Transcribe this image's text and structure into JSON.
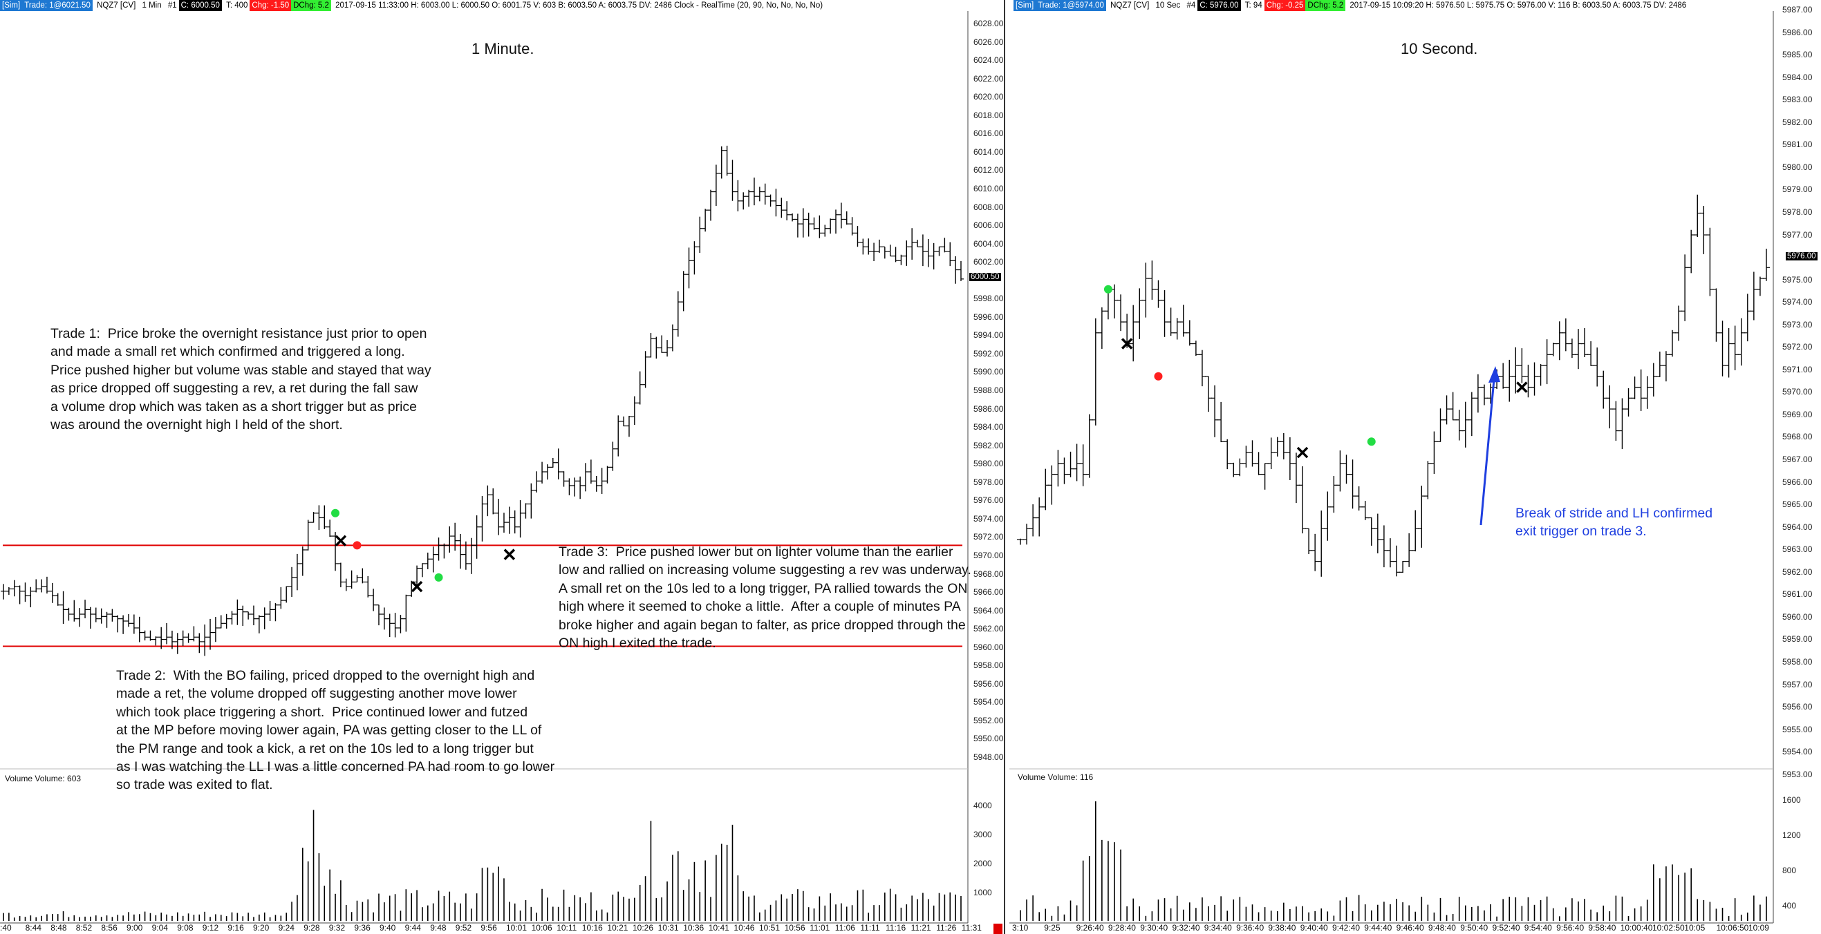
{
  "left": {
    "status": {
      "sim": "[Sim]",
      "trade": "Trade: 1@6021.50",
      "symbol": "NQZ7 [CV]",
      "period": "1 Min",
      "num": "#1",
      "close": "C: 6000.50",
      "ticks": "T: 400",
      "chg": "Chg: -1.50",
      "dchg": "DChg: 5.2",
      "info": "2017-09-15 11:33:00 H: 6003.00 L: 6000.50 O: 6001.75 V: 603 B: 6003.50 A: 6003.75 DV: 2486 Clock - RealTime   (20, 90, No, No, No, No)"
    },
    "title": "1 Minute.",
    "price_tag": "6000.50",
    "price_labels": [
      "6028.00",
      "6026.00",
      "6024.00",
      "6022.00",
      "6020.00",
      "6018.00",
      "6016.00",
      "6014.00",
      "6012.00",
      "6010.00",
      "6008.00",
      "6006.00",
      "6004.00",
      "6002.00",
      "",
      "5998.00",
      "5996.00",
      "5994.00",
      "5992.00",
      "5990.00",
      "5988.00",
      "5986.00",
      "5984.00",
      "5982.00",
      "5980.00",
      "5978.00",
      "5976.00",
      "5974.00",
      "5972.00",
      "5970.00",
      "5968.00",
      "5966.00",
      "5964.00",
      "5962.00",
      "5960.00",
      "5958.00",
      "5956.00",
      "5954.00",
      "5952.00",
      "5950.00",
      "5948.00"
    ],
    "volume_labels": [
      "4000",
      "3000",
      "2000",
      "1000"
    ],
    "volume_title": "Volume  Volume: 603",
    "time_labels": [
      ":40",
      "8:44",
      "8:48",
      "8:52",
      "8:56",
      "9:00",
      "9:04",
      "9:08",
      "9:12",
      "9:16",
      "9:20",
      "9:24",
      "9:28",
      "9:32",
      "9:36",
      "9:40",
      "9:44",
      "9:48",
      "9:52",
      "9:56",
      "10:01",
      "10:06",
      "10:11",
      "10:16",
      "10:21",
      "10:26",
      "10:31",
      "10:36",
      "10:41",
      "10:46",
      "10:51",
      "10:56",
      "11:01",
      "11:06",
      "11:11",
      "11:16",
      "11:21",
      "11:26",
      "11:31"
    ],
    "trade1": "Trade 1:  Price broke the overnight resistance just prior to open\nand made a small ret which confirmed and triggered a long.\nPrice pushed higher but volume was stable and stayed that way\nas price dropped off suggesting a rev, a ret during the fall saw\na volume drop which was taken as a short trigger but as price\nwas around the overnight high I held of the short.",
    "trade2": "Trade 2:  With the BO failing, priced dropped to the overnight high and\nmade a ret, the volume dropped off suggesting another move lower\nwhich took place triggering a short.  Price continued lower and futzed\nat the MP before moving lower again, PA was getting closer to the LL of\nthe PM range and took a kick, a ret on the 10s led to a long trigger but\nas I was watching the LL I was a little concerned PA had room to go lower\nso trade was exited to flat.",
    "trade3": "Trade 3:  Price pushed lower but on lighter volume than the earlier\nlow and rallied on increasing volume suggesting a rev was underway.\nA small ret on the 10s led to a long trigger, PA rallied towards the ON\nhigh where it seemed to choke a little.  After a couple of minutes PA\nbroke higher and again began to falter, as price dropped through the\nON high I exited the trade."
  },
  "right": {
    "status": {
      "sim": "[Sim]",
      "trade": "Trade: 1@5974.00",
      "symbol": "NQZ7 [CV]",
      "period": "10 Sec",
      "num": "#4",
      "close": "C: 5976.00",
      "ticks": "T: 94",
      "chg": "Chg: -0.25",
      "dchg": "DChg: 5.2",
      "info": "2017-09-15 10:09:20 H: 5976.50 L: 5975.75 O: 5976.00 V: 116 B: 6003.50 A: 6003.75 DV: 2486"
    },
    "title": "10 Second.",
    "price_tag": "5976.00",
    "price_labels": [
      "5987.00",
      "5986.00",
      "5985.00",
      "5984.00",
      "5983.00",
      "5982.00",
      "5981.00",
      "5980.00",
      "5979.00",
      "5978.00",
      "5977.00",
      "",
      "5975.00",
      "5974.00",
      "5973.00",
      "5972.00",
      "5971.00",
      "5970.00",
      "5969.00",
      "5968.00",
      "5967.00",
      "5966.00",
      "5965.00",
      "5964.00",
      "5963.00",
      "5962.00",
      "5961.00",
      "5960.00",
      "5959.00",
      "5958.00",
      "5957.00",
      "5956.00",
      "5955.00",
      "5954.00",
      "5953.00"
    ],
    "volume_labels": [
      "1600",
      "1200",
      "800",
      "400"
    ],
    "volume_title": "Volume  Volume: 116",
    "time_labels": [
      "3:10",
      "9:25",
      "9:26:40",
      "9:28:40",
      "9:30:40",
      "9:32:40",
      "9:34:40",
      "9:36:40",
      "9:38:40",
      "9:40:40",
      "9:42:40",
      "9:44:40",
      "9:46:40",
      "9:48:40",
      "9:50:40",
      "9:52:40",
      "9:54:40",
      "9:56:40",
      "9:58:40",
      "10:00:40",
      "10:02:50",
      "10:05",
      "10:06:50",
      "10:09"
    ],
    "annotation": "Break of stride and LH confirmed\nexit trigger on trade 3."
  },
  "colors": {
    "long": "#22dd44",
    "short": "#ff2020",
    "level": "#e00000",
    "arrow": "#1f3fe0"
  },
  "chart_data": [
    {
      "type": "candlestick",
      "title": "1 Minute.",
      "y_range": [
        5947,
        6029
      ],
      "levels": [
        5971.5,
        5960.5
      ],
      "closes": [
        5966.5,
        5966.75,
        5967,
        5966.5,
        5966,
        5966.5,
        5966.75,
        5967,
        5966.5,
        5966,
        5965,
        5964.5,
        5964,
        5963.5,
        5964,
        5964.5,
        5964,
        5963.5,
        5963.75,
        5964,
        5963.75,
        5963.5,
        5963.25,
        5963,
        5962.5,
        5962,
        5961.5,
        5961.25,
        5961.5,
        5961.25,
        5961.5,
        5961,
        5961.25,
        5961.5,
        5961.25,
        5961.5,
        5961,
        5961.5,
        5962,
        5962.5,
        5963,
        5963.5,
        5964,
        5964.5,
        5964.25,
        5964,
        5963.5,
        5963.75,
        5964,
        5964.5,
        5965,
        5965.5,
        5967,
        5968,
        5969.5,
        5971,
        5974,
        5975,
        5974.5,
        5973.5,
        5972.5,
        5969.5,
        5967.5,
        5967,
        5967.5,
        5968,
        5967.5,
        5966,
        5965,
        5964,
        5963.5,
        5963,
        5962.5,
        5963.5,
        5966,
        5967.5,
        5969,
        5969.5,
        5970,
        5970.5,
        5971.5,
        5971.5,
        5972.5,
        5972,
        5970.5,
        5969.5,
        5971.5,
        5973.5,
        5976,
        5977,
        5975,
        5973.5,
        5974,
        5974.5,
        5973.5,
        5975,
        5976,
        5977.5,
        5978.5,
        5979.5,
        5980,
        5980.5,
        5979.5,
        5978.5,
        5978,
        5978.5,
        5978,
        5979.5,
        5978.5,
        5978,
        5978.5,
        5980,
        5982,
        5985,
        5984.5,
        5985.5,
        5987,
        5989,
        5992,
        5994,
        5993,
        5992.5,
        5993,
        5995,
        5998,
        6001,
        6002.5,
        6004,
        6006,
        6008,
        6010,
        6012,
        6014.5,
        6012,
        6010,
        6009,
        6009.5,
        6010,
        6009.5,
        6010,
        6009.5,
        6009,
        6008.5,
        6008,
        6007.5,
        6007,
        6006.5,
        6007,
        6006.5,
        6006,
        6005.5,
        6006,
        6007,
        6007.5,
        6007,
        6006.5,
        6005.5,
        6004.5,
        6004,
        6003.5,
        6003.5,
        6004,
        6003.5,
        6003,
        6002.5,
        6003,
        6004,
        6004.5,
        6004,
        6003.5,
        6003,
        6003.5,
        6004,
        6003.5,
        6002.5,
        6001.5,
        6000.5
      ]
    },
    {
      "type": "candlestick",
      "title": "10 Second.",
      "y_range": [
        5952.9,
        5987.5
      ],
      "closes": [
        5963.5,
        5964,
        5964.5,
        5965,
        5966,
        5966.5,
        5967,
        5966.5,
        5966.75,
        5967,
        5966.5,
        5969,
        5973,
        5974,
        5975,
        5974.5,
        5973.5,
        5972.5,
        5973.5,
        5974.5,
        5975.5,
        5975,
        5974.5,
        5973.5,
        5973,
        5973.5,
        5973,
        5972.5,
        5972,
        5971,
        5970,
        5969,
        5968,
        5967,
        5966.5,
        5967,
        5967.5,
        5967,
        5966.5,
        5967,
        5967.5,
        5968,
        5967.5,
        5967,
        5966,
        5964,
        5963,
        5962.5,
        5964,
        5965,
        5966,
        5967,
        5966.5,
        5965.5,
        5965,
        5964.5,
        5964,
        5963.5,
        5963,
        5962.5,
        5962,
        5962.5,
        5963,
        5964,
        5965.5,
        5967,
        5968,
        5969,
        5969.5,
        5969,
        5968.5,
        5969,
        5970,
        5970.5,
        5970,
        5970.5,
        5971,
        5970.5,
        5971,
        5971.5,
        5971,
        5970.5,
        5971,
        5971.5,
        5972,
        5972.5,
        5973,
        5972.5,
        5972,
        5972.5,
        5972,
        5971.5,
        5971,
        5970,
        5969.5,
        5968.5,
        5969.5,
        5970,
        5970.5,
        5970,
        5970.5,
        5971,
        5971.5,
        5972,
        5973,
        5974,
        5976,
        5977.5,
        5978.5,
        5977.5,
        5975,
        5973,
        5971.5,
        5972.5,
        5972,
        5973,
        5974,
        5975,
        5975.5,
        5976
      ]
    }
  ]
}
